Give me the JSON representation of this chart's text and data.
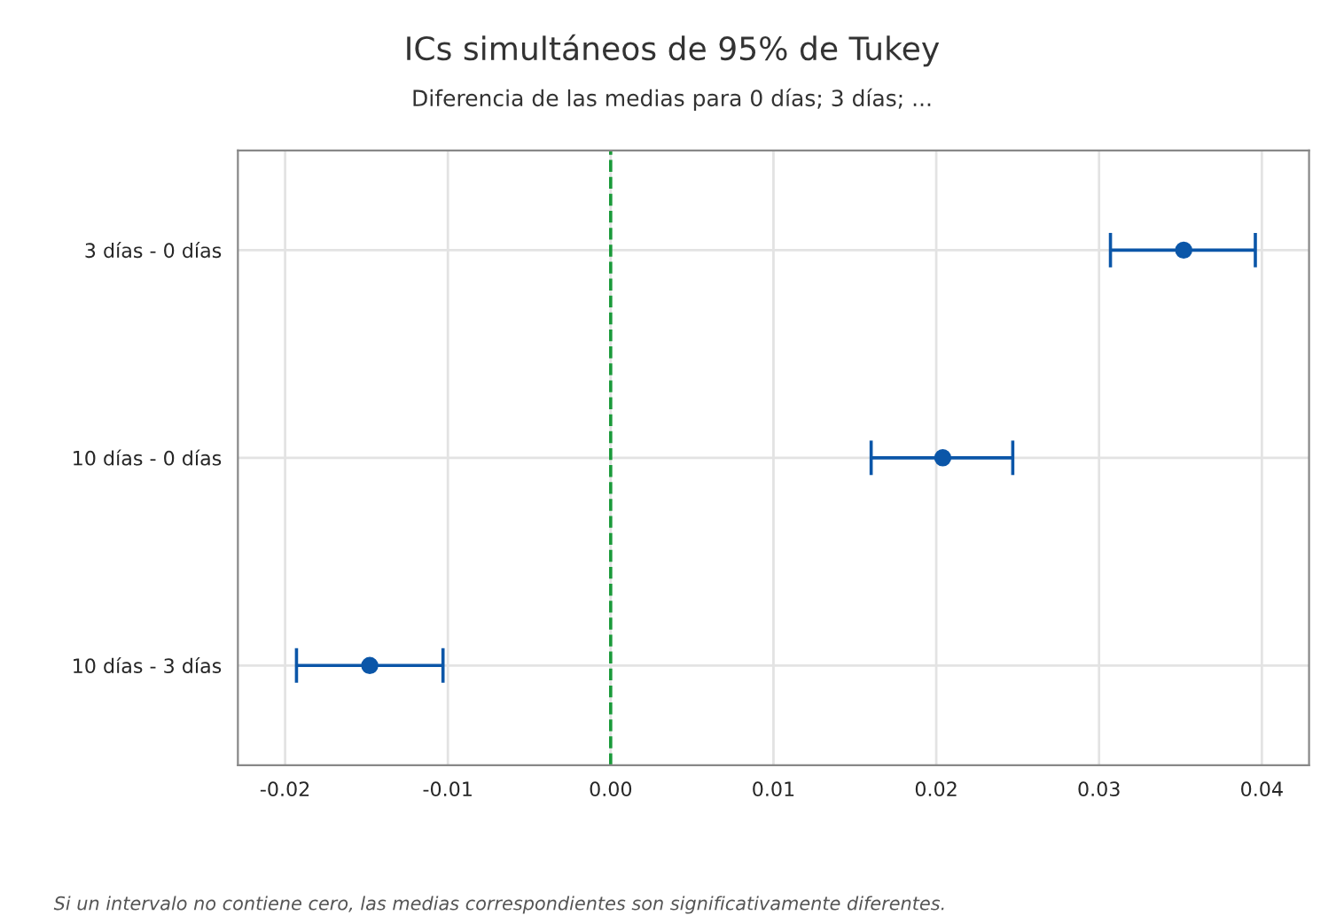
{
  "chart_data": {
    "type": "scatter",
    "orientation": "horizontal",
    "title": "ICs simultáneos de 95% de Tukey",
    "subtitle": "Diferencia de las medias para 0 días; 3 días; ...",
    "categories": [
      "3 días - 0 días",
      "10 días - 0 días",
      "10 días - 3 días"
    ],
    "series": [
      {
        "color": "#0b56a8",
        "values": [
          0.0352,
          0.0204,
          -0.0148
        ],
        "errors": [
          [
            0.0307,
            0.0396
          ],
          [
            0.016,
            0.0247
          ],
          [
            -0.0193,
            -0.0103
          ]
        ]
      }
    ],
    "xlim": [
      -0.0229,
      0.0429
    ],
    "xticks": [
      {
        "value": -0.02,
        "label": "-0.02"
      },
      {
        "value": -0.01,
        "label": "-0.01"
      },
      {
        "value": 0,
        "label": "0.00"
      },
      {
        "value": 0.01,
        "label": "0.01"
      },
      {
        "value": 0.02,
        "label": "0.02"
      },
      {
        "value": 0.03,
        "label": "0.03"
      },
      {
        "value": 0.04,
        "label": "0.04"
      }
    ],
    "ref_lines": [
      {
        "axis": "x",
        "value": 0,
        "color": "#1a9a3a",
        "line_style": "dashed"
      }
    ],
    "grid": true,
    "marker": "circle",
    "annotations": [
      "Si un intervalo no contiene cero, las medias correspondientes son significativamente diferentes."
    ]
  }
}
